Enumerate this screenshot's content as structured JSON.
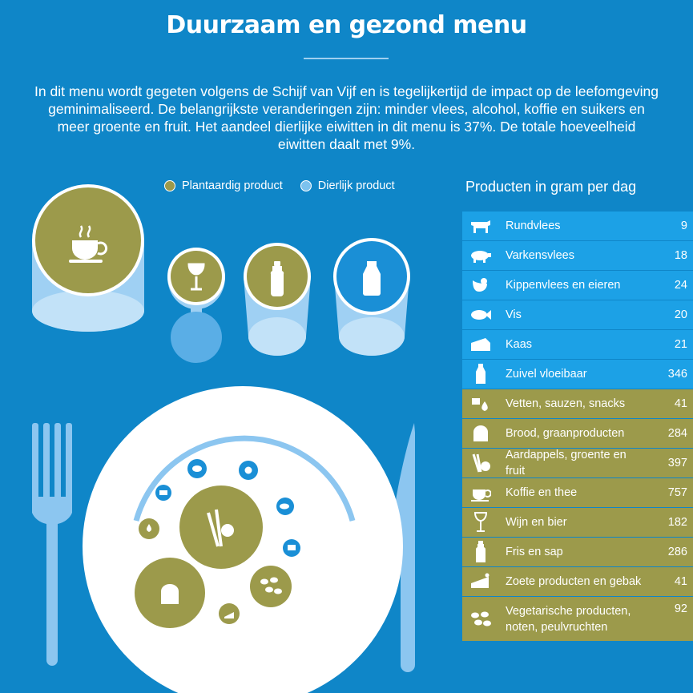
{
  "header": {
    "title": "Duurzaam en gezond menu",
    "intro": "In dit menu wordt gegeten volgens de Schijf van Vijf en is tegelijkertijd de impact op de leefomgeving geminimaliseerd. De belangrijkste veranderingen zijn: minder vlees, alcohol, koffie en suikers en meer groente en fruit. Het aandeel dierlijke eiwitten in dit menu is 37%. De totale hoeveelheid eiwitten daalt met 9%."
  },
  "legend": {
    "plant_label": "Plantaardig product",
    "animal_label": "Dierlijk product"
  },
  "colors": {
    "background": "#0f86c8",
    "plant": "#9c9a4b",
    "animal_row": "#1ca1e6",
    "animal_circle": "#1a8fd6",
    "glass": "#9fd0f3",
    "plate": "#ffffff",
    "cutlery": "#8cc6f0"
  },
  "table": {
    "title": "Producten in gram per dag",
    "rows": [
      {
        "label": "Rundvlees",
        "value": "9",
        "type": "animal",
        "icon": "cow-icon"
      },
      {
        "label": "Varkensvlees",
        "value": "18",
        "type": "animal",
        "icon": "pig-icon"
      },
      {
        "label": "Kippenvlees en eieren",
        "value": "24",
        "type": "animal",
        "icon": "chicken-icon"
      },
      {
        "label": "Vis",
        "value": "20",
        "type": "animal",
        "icon": "fish-icon"
      },
      {
        "label": "Kaas",
        "value": "21",
        "type": "animal",
        "icon": "cheese-icon"
      },
      {
        "label": "Zuivel vloeibaar",
        "value": "346",
        "type": "animal",
        "icon": "milk-bottle-icon"
      },
      {
        "label": "Vetten, sauzen, snacks",
        "value": "41",
        "type": "plant",
        "icon": "fats-sauces-icon"
      },
      {
        "label": "Brood, graanproducten",
        "value": "284",
        "type": "plant",
        "icon": "bread-icon"
      },
      {
        "label": "Aardappels, groente en fruit",
        "value": "397",
        "type": "plant",
        "icon": "vegetables-fruit-icon"
      },
      {
        "label": "Koffie en thee",
        "value": "757",
        "type": "plant",
        "icon": "coffee-cup-icon"
      },
      {
        "label": "Wijn en bier",
        "value": "182",
        "type": "plant",
        "icon": "wine-glass-icon"
      },
      {
        "label": "Fris en sap",
        "value": "286",
        "type": "plant",
        "icon": "soda-bottle-icon"
      },
      {
        "label": "Zoete producten en gebak",
        "value": "41",
        "type": "plant",
        "icon": "cake-icon"
      },
      {
        "label": "Vegetarische producten, noten, peulvruchten",
        "value": "92",
        "type": "plant",
        "icon": "beans-nuts-icon"
      }
    ]
  }
}
